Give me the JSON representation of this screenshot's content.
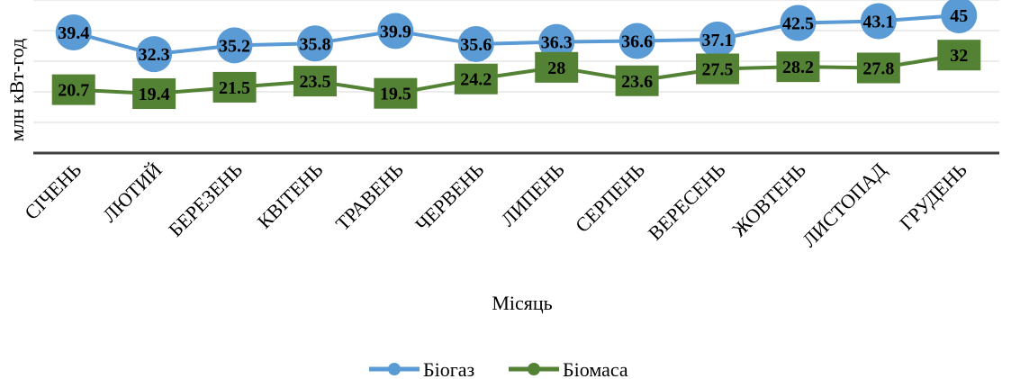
{
  "chart_data": {
    "type": "line",
    "xlabel": "Місяць",
    "ylabel": "млн кВт-год",
    "ylim": [
      0,
      50
    ],
    "categories": [
      "СІЧЕНЬ",
      "ЛЮТИЙ",
      "БЕРЕЗЕНЬ",
      "КВІТЕНЬ",
      "ТРАВЕНЬ",
      "ЧЕРВЕНЬ",
      "ЛИПЕНЬ",
      "СЕРПЕНЬ",
      "ВЕРЕСЕНЬ",
      "ЖОВТЕНЬ",
      "ЛИСТОПАД",
      "ГРУДЕНЬ"
    ],
    "series": [
      {
        "name": "Біогаз",
        "color": "#5b9bd5",
        "values": [
          39.4,
          32.3,
          35.2,
          35.8,
          39.9,
          35.6,
          36.3,
          36.6,
          37.1,
          42.5,
          43.1,
          45
        ]
      },
      {
        "name": "Біомаса",
        "color": "#548235",
        "values": [
          20.7,
          19.4,
          21.5,
          23.5,
          19.5,
          24.2,
          28,
          23.6,
          27.5,
          28.2,
          27.8,
          32
        ]
      }
    ],
    "grid": true,
    "legend": "bottom"
  }
}
